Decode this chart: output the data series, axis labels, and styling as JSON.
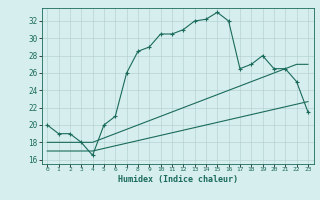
{
  "xlabel": "Humidex (Indice chaleur)",
  "ylabel": "",
  "bg_color": "#d6eeee",
  "grid_color": "#b0cccc",
  "line_color": "#1a6b5a",
  "xlim": [
    -0.5,
    23.5
  ],
  "ylim": [
    15.5,
    33.5
  ],
  "yticks": [
    16,
    18,
    20,
    22,
    24,
    26,
    28,
    30,
    32
  ],
  "xticks": [
    0,
    1,
    2,
    3,
    4,
    5,
    6,
    7,
    8,
    9,
    10,
    11,
    12,
    13,
    14,
    15,
    16,
    17,
    18,
    19,
    20,
    21,
    22,
    23
  ],
  "curve1_x": [
    0,
    1,
    2,
    3,
    4,
    5,
    6,
    7,
    8,
    9,
    10,
    11,
    12,
    13,
    14,
    15,
    16,
    17,
    18,
    19,
    20,
    21,
    22,
    23
  ],
  "curve1_y": [
    20,
    19,
    19,
    18,
    16.5,
    20,
    21,
    26,
    28.5,
    29,
    30.5,
    30.5,
    31,
    32,
    32.2,
    33,
    32,
    26.5,
    27,
    28,
    26.5,
    26.5,
    25,
    21.5
  ],
  "curve2_x": [
    0,
    1,
    2,
    3,
    4,
    5,
    6,
    7,
    8,
    9,
    10,
    11,
    12,
    13,
    14,
    15,
    16,
    17,
    18,
    19,
    20,
    21,
    22,
    23
  ],
  "curve2_y": [
    18,
    18,
    18,
    18,
    18,
    18.5,
    19,
    19.5,
    20,
    20.5,
    21,
    21.5,
    22,
    22.5,
    23,
    23.5,
    24,
    24.5,
    25,
    25.5,
    26,
    26.5,
    27,
    27
  ],
  "curve3_x": [
    0,
    1,
    2,
    3,
    4,
    5,
    6,
    7,
    8,
    9,
    10,
    11,
    12,
    13,
    14,
    15,
    16,
    17,
    18,
    19,
    20,
    21,
    22,
    23
  ],
  "curve3_y": [
    17,
    17,
    17,
    17,
    17,
    17.3,
    17.6,
    17.9,
    18.2,
    18.5,
    18.8,
    19.1,
    19.4,
    19.7,
    20,
    20.3,
    20.6,
    20.9,
    21.2,
    21.5,
    21.8,
    22.1,
    22.4,
    22.7
  ]
}
